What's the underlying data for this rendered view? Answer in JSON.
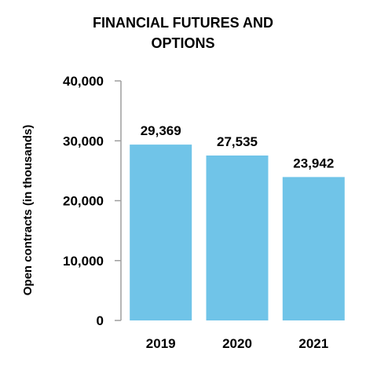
{
  "chart_data": {
    "type": "bar",
    "title_lines": [
      "FINANCIAL FUTURES AND",
      "OPTIONS"
    ],
    "xlabel": "",
    "ylabel": "Open contracts (in thousands)",
    "categories": [
      "2019",
      "2020",
      "2021"
    ],
    "values": [
      29369,
      27535,
      23942
    ],
    "value_labels": [
      "29,369",
      "27,535",
      "23,942"
    ],
    "ylim": [
      0,
      40000
    ],
    "yticks": [
      0,
      10000,
      20000,
      30000,
      40000
    ],
    "ytick_labels": [
      "0",
      "10,000",
      "20,000",
      "30,000",
      "40,000"
    ],
    "bar_color": "#70c4e8",
    "axis_color": "#9e9e9e",
    "grid": false,
    "legend": "none"
  }
}
